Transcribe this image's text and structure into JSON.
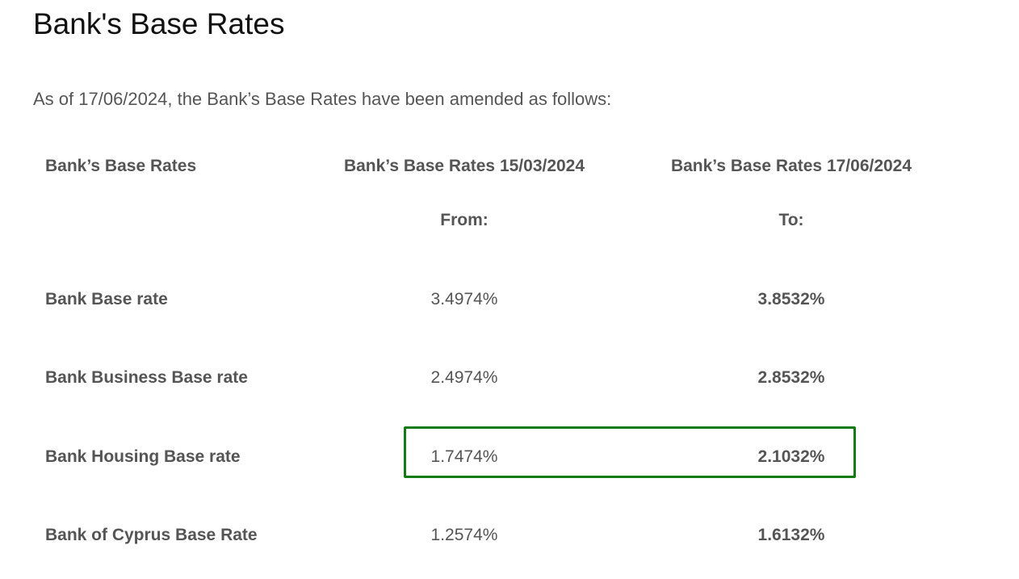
{
  "page": {
    "title": "Bank's Base Rates",
    "intro": "As of 17/06/2024, the Bank’s Base Rates have been amended as follows:"
  },
  "table": {
    "headers": {
      "label": "Bank’s Base Rates",
      "from_date": "Bank’s Base Rates 15/03/2024",
      "to_date": "Bank’s Base Rates 17/06/2024",
      "from_sub": "From:",
      "to_sub": "To:"
    },
    "rows": [
      {
        "label": "Bank Base rate",
        "from": "3.4974%",
        "to": "3.8532%"
      },
      {
        "label": "Bank Business Base rate",
        "from": "2.4974%",
        "to": "2.8532%"
      },
      {
        "label": "Bank Housing Base rate",
        "from": "1.7474%",
        "to": "2.1032%",
        "highlighted": true
      },
      {
        "label": "Bank of Cyprus Base Rate",
        "from": "1.2574%",
        "to": "1.6132%"
      }
    ]
  },
  "colors": {
    "highlight_border": "#147a14",
    "text": "#555555"
  }
}
